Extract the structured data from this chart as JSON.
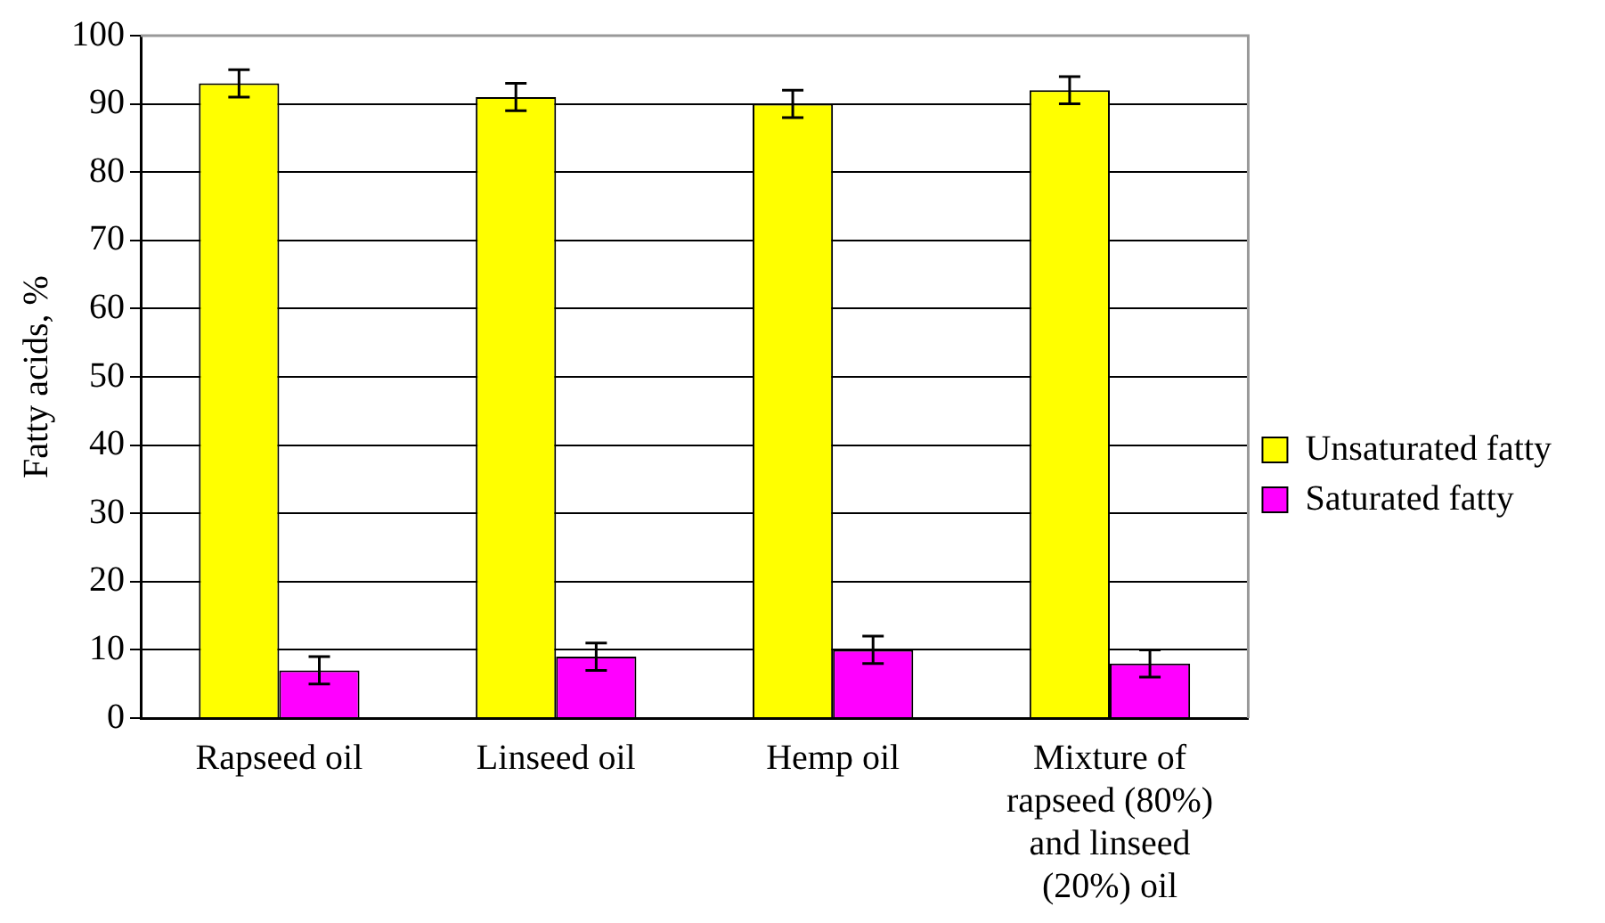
{
  "chart_data": {
    "type": "bar",
    "ylabel": "Fatty acids, %",
    "categories": [
      "Rapseed oil",
      "Linseed oil",
      "Hemp oil",
      "Mixture of rapseed (80%) and linseed (20%) oil"
    ],
    "series": [
      {
        "name": "Unsaturated fatty",
        "color": "#ffff00",
        "values": [
          93,
          91,
          90,
          92
        ],
        "errors": [
          2,
          2,
          2,
          2
        ]
      },
      {
        "name": "Saturated fatty",
        "color": "#ff00ff",
        "values": [
          7,
          9,
          10,
          8
        ],
        "errors": [
          2,
          2,
          2,
          2
        ]
      }
    ],
    "ylim": [
      0,
      100
    ],
    "yticks": [
      0,
      10,
      20,
      30,
      40,
      50,
      60,
      70,
      80,
      90,
      100
    ],
    "grid": "y",
    "legend": "right"
  }
}
